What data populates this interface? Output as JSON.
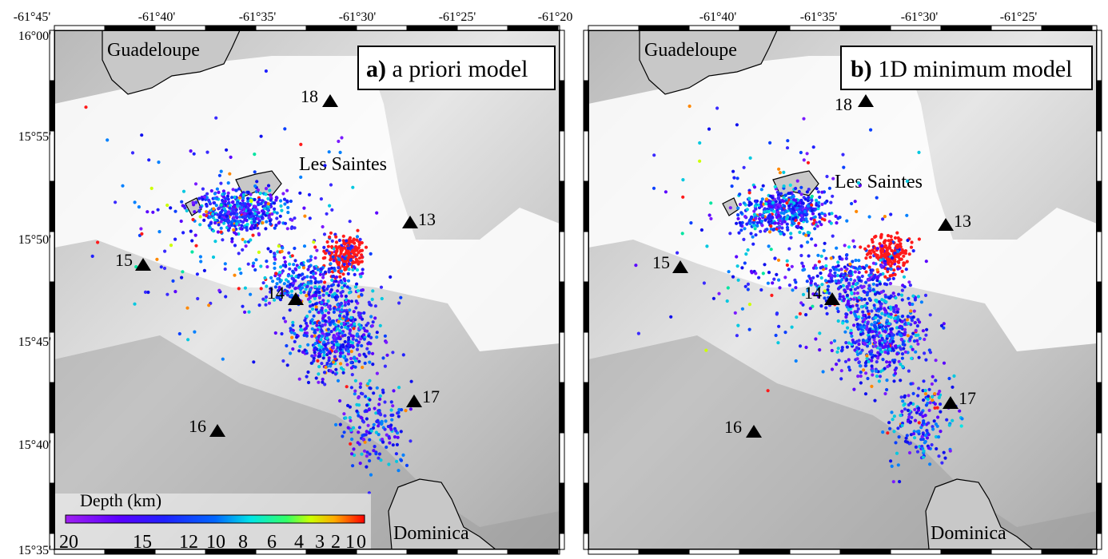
{
  "panels": [
    {
      "id": "a",
      "title_letter": "a)",
      "title_text": " a priori model",
      "top_lon_labels": [
        "-61°45'",
        "-61°40'",
        "-61°35'",
        "-61°30'",
        "-61°25'",
        "-61°20'"
      ],
      "left_lat_labels": [
        "16°00'",
        "15°55'",
        "15°50'",
        "15°45'",
        "15°40'",
        "15°35'"
      ]
    },
    {
      "id": "b",
      "title_letter": "b)",
      "title_text": " 1D minimum model",
      "top_lon_labels": [
        "-61°40'",
        "-61°35'",
        "-61°30'",
        "-61°25'"
      ],
      "left_lat_labels": []
    }
  ],
  "places": {
    "guadeloupe": "Guadeloupe",
    "les_saintes": "Les Saintes",
    "dominica": "Dominica"
  },
  "stations": [
    "13",
    "14",
    "15",
    "16",
    "17",
    "18"
  ],
  "colorbar": {
    "title": "Depth (km)",
    "tick_labels": [
      "20",
      "15",
      "12",
      "10",
      "8",
      "6",
      "4",
      "3",
      "2",
      "1",
      "0"
    ]
  },
  "colors": {
    "land": "#c8c8c8",
    "sea_dark": "#8a8a8a",
    "sea_light": "#f2f2f2",
    "deep": "#0000ff",
    "shallow": "#ff0000"
  }
}
